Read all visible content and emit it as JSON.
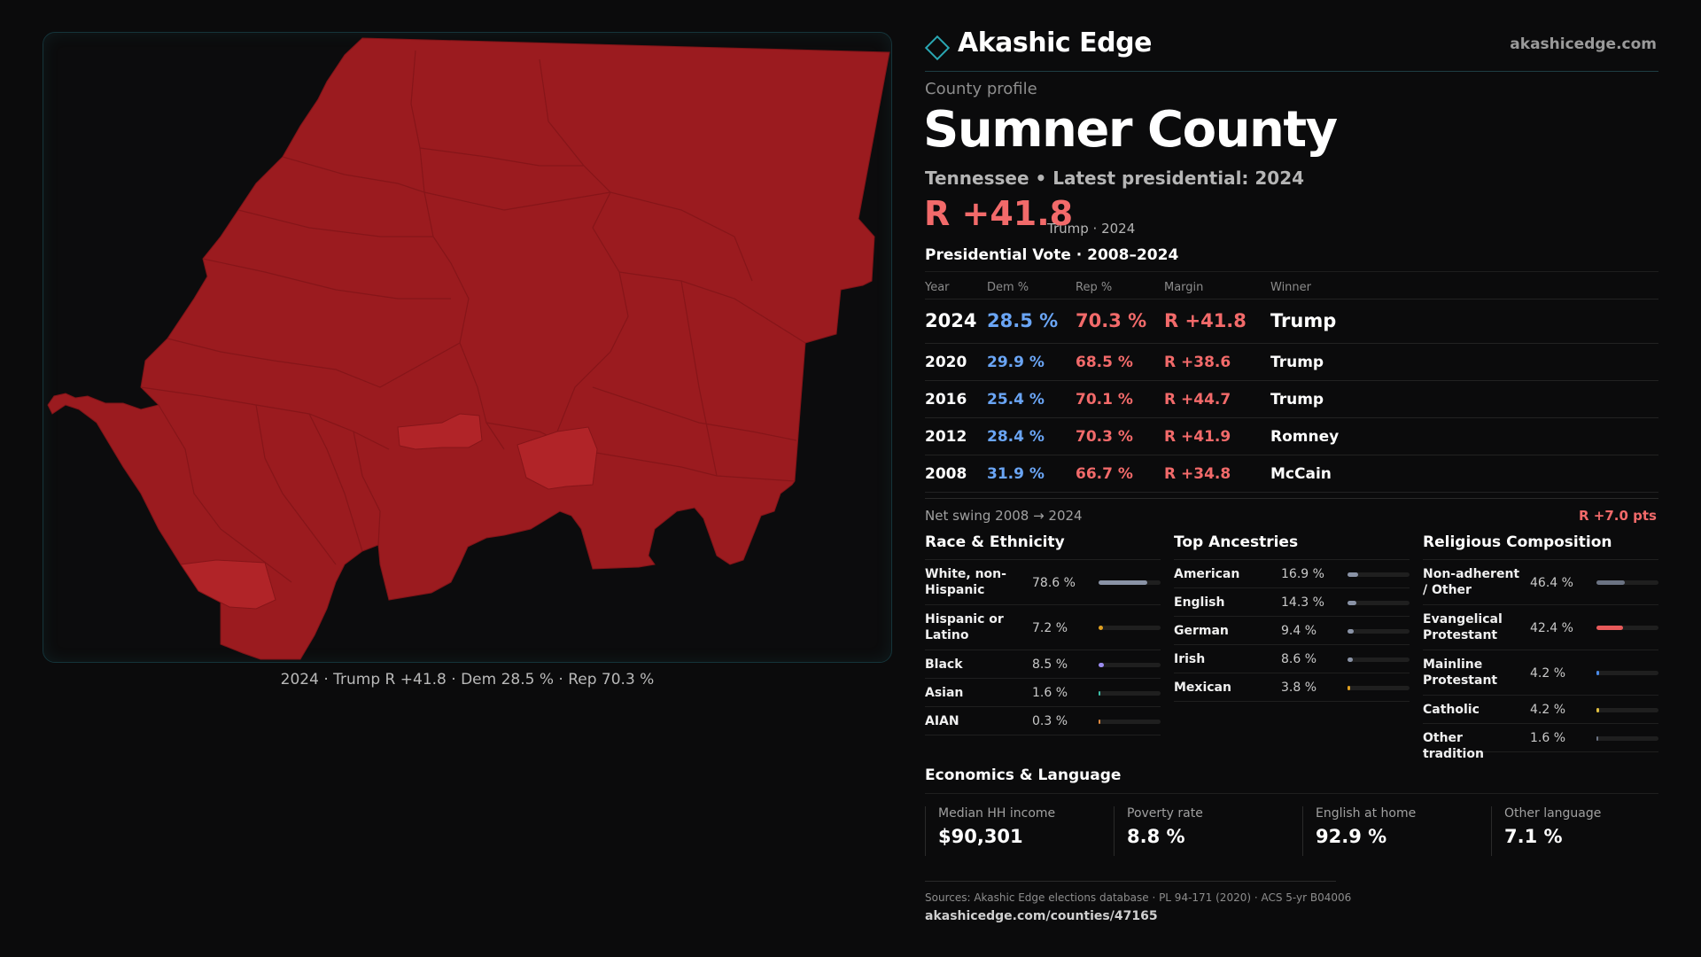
{
  "brand": "Akashic Edge",
  "site_url": "akashicedge.com",
  "profile_label": "County profile",
  "county_name": "Sumner County",
  "subtitle": "Tennessee • Latest presidential: 2024",
  "headline": {
    "margin": "R +41.8",
    "note": "Trump · 2024"
  },
  "map_caption": "2024 · Trump R +41.8 · Dem 28.5 % · Rep 70.3 %",
  "colors": {
    "republican": "#f26a6a",
    "democrat": "#6aa5f5",
    "map_fill": "#9b1b1f",
    "map_highlight": "#b12428",
    "accent": "#2aa7b3"
  },
  "vote": {
    "title": "Presidential Vote · 2008–2024",
    "headers": {
      "year": "Year",
      "dem": "Dem %",
      "rep": "Rep %",
      "margin": "Margin",
      "winner": "Winner"
    },
    "rows": [
      {
        "year": "2024",
        "dem": "28.5 %",
        "rep": "70.3 %",
        "margin": "R +41.8",
        "winner": "Trump"
      },
      {
        "year": "2020",
        "dem": "29.9 %",
        "rep": "68.5 %",
        "margin": "R +38.6",
        "winner": "Trump"
      },
      {
        "year": "2016",
        "dem": "25.4 %",
        "rep": "70.1 %",
        "margin": "R +44.7",
        "winner": "Trump"
      },
      {
        "year": "2012",
        "dem": "28.4 %",
        "rep": "70.3 %",
        "margin": "R +41.9",
        "winner": "Romney"
      },
      {
        "year": "2008",
        "dem": "31.9 %",
        "rep": "66.7 %",
        "margin": "R +34.8",
        "winner": "McCain"
      }
    ],
    "swing_label": "Net swing 2008 → 2024",
    "swing_value": "R +7.0 pts"
  },
  "race": {
    "title": "Race & Ethnicity",
    "rows": [
      {
        "label": "White, non-Hispanic",
        "value": "78.6 %",
        "pct": 78.6,
        "color": "#8a93a6"
      },
      {
        "label": "Hispanic or Latino",
        "value": "7.2 %",
        "pct": 7.2,
        "color": "#e0a020"
      },
      {
        "label": "Black",
        "value": "8.5 %",
        "pct": 8.5,
        "color": "#9b8cf0"
      },
      {
        "label": "Asian",
        "value": "1.6 %",
        "pct": 1.6,
        "color": "#3dbfa8"
      },
      {
        "label": "AIAN",
        "value": "0.3 %",
        "pct": 0.3,
        "color": "#e08a40"
      }
    ]
  },
  "ancestry": {
    "title": "Top Ancestries",
    "rows": [
      {
        "label": "American",
        "value": "16.9 %",
        "pct": 16.9,
        "color": "#8a93a6"
      },
      {
        "label": "English",
        "value": "14.3 %",
        "pct": 14.3,
        "color": "#8a93a6"
      },
      {
        "label": "German",
        "value": "9.4 %",
        "pct": 9.4,
        "color": "#8a93a6"
      },
      {
        "label": "Irish",
        "value": "8.6 %",
        "pct": 8.6,
        "color": "#8a93a6"
      },
      {
        "label": "Mexican",
        "value": "3.8 %",
        "pct": 3.8,
        "color": "#e0a020"
      }
    ]
  },
  "religion": {
    "title": "Religious Composition",
    "rows": [
      {
        "label": "Non-adherent / Other",
        "value": "46.4 %",
        "pct": 46.4,
        "color": "#6b7383"
      },
      {
        "label": "Evangelical Protestant",
        "value": "42.4 %",
        "pct": 42.4,
        "color": "#e85a5a"
      },
      {
        "label": "Mainline Protestant",
        "value": "4.2 %",
        "pct": 4.2,
        "color": "#4a8ae8"
      },
      {
        "label": "Catholic",
        "value": "4.2 %",
        "pct": 4.2,
        "color": "#e0c040"
      },
      {
        "label": "Other tradition",
        "value": "1.6 %",
        "pct": 1.6,
        "color": "#6b7383"
      }
    ]
  },
  "economics": {
    "title": "Economics & Language",
    "cards": [
      {
        "label": "Median HH income",
        "value": "$90,301"
      },
      {
        "label": "Poverty rate",
        "value": "8.8 %"
      },
      {
        "label": "English at home",
        "value": "92.9 %"
      },
      {
        "label": "Other language",
        "value": "7.1 %"
      }
    ]
  },
  "sources": "Sources: Akashic Edge elections database · PL 94-171 (2020) · ACS 5-yr B04006",
  "footer_url": "akashicedge.com/counties/47165"
}
